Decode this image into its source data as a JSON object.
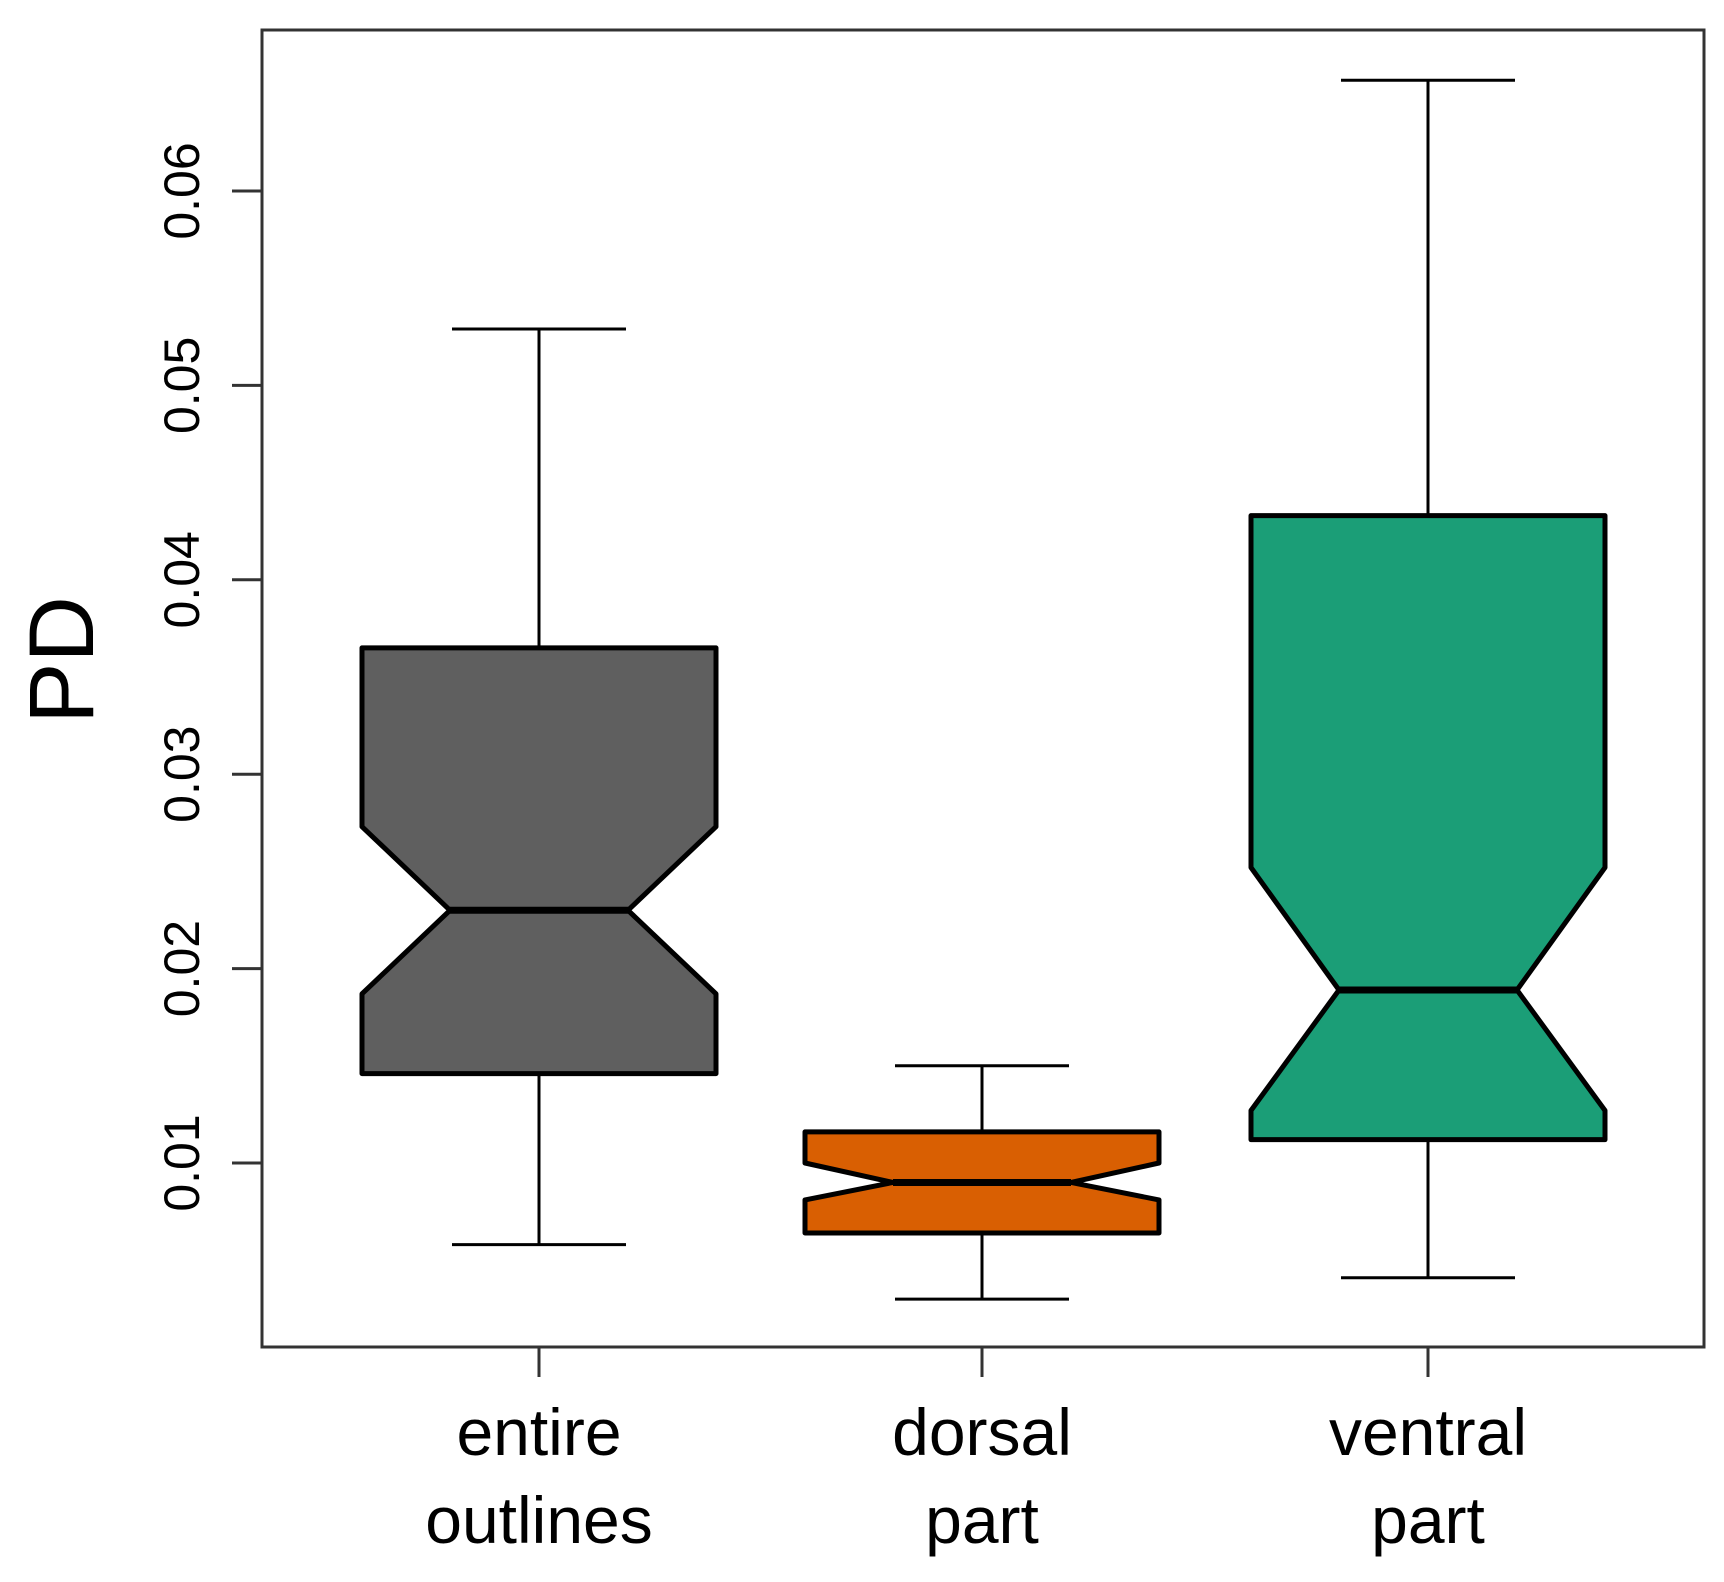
{
  "chart_data": {
    "type": "boxplot",
    "notched": true,
    "title": "",
    "ylabel": "PD",
    "xlabel": "",
    "ylim": [
      0.0,
      0.0678
    ],
    "yticks": [
      0.01,
      0.02,
      0.03,
      0.04,
      0.05,
      0.06
    ],
    "ytick_labels": [
      "0.01",
      "0.02",
      "0.03",
      "0.04",
      "0.05",
      "0.06"
    ],
    "grid": false,
    "boxes": [
      {
        "label_lines": [
          "entire",
          "outlines"
        ],
        "whisker_low": 0.0058,
        "q1": 0.0146,
        "median": 0.023,
        "q3": 0.0365,
        "whisker_high": 0.0529,
        "notch_low": 0.0187,
        "notch_high": 0.0273,
        "color": "#5f5f5f"
      },
      {
        "label_lines": [
          "dorsal",
          "part"
        ],
        "whisker_low": 0.003,
        "q1": 0.0064,
        "median": 0.009,
        "q3": 0.0116,
        "whisker_high": 0.015,
        "notch_low": 0.0081,
        "notch_high": 0.01,
        "color": "#d95f02"
      },
      {
        "label_lines": [
          "ventral",
          "part"
        ],
        "whisker_low": 0.0041,
        "q1": 0.0112,
        "median": 0.0189,
        "q3": 0.0433,
        "whisker_high": 0.0657,
        "notch_low": 0.0127,
        "notch_high": 0.0252,
        "color": "#1b9e77"
      }
    ]
  }
}
